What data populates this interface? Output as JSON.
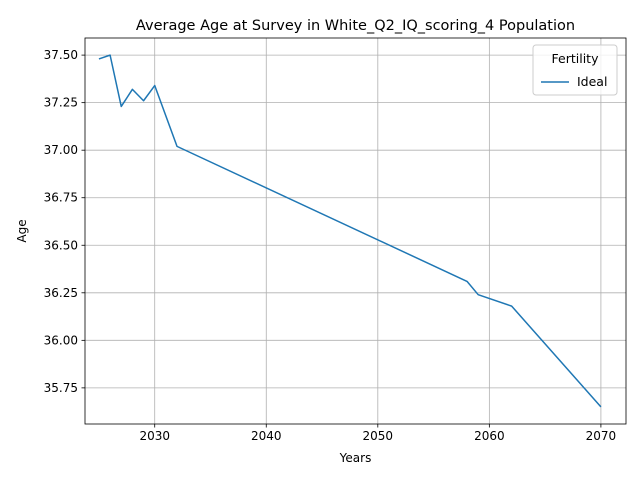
{
  "chart_data": {
    "type": "line",
    "title": "Average Age at Survey in White_Q2_IQ_scoring_4 Population",
    "xlabel": "Years",
    "ylabel": "Age",
    "xlim": [
      2023.75,
      2072.25
    ],
    "ylim": [
      35.56,
      37.59
    ],
    "x_ticks": [
      2030,
      2040,
      2050,
      2060,
      2070
    ],
    "y_ticks": [
      35.75,
      36.0,
      36.25,
      36.5,
      36.75,
      37.0,
      37.25,
      37.5
    ],
    "x_tick_labels": [
      "2030",
      "2040",
      "2050",
      "2060",
      "2070"
    ],
    "y_tick_labels": [
      "35.75",
      "36.00",
      "36.25",
      "36.50",
      "36.75",
      "37.00",
      "37.25",
      "37.50"
    ],
    "grid": true,
    "legend": {
      "title": "Fertility",
      "placement": "top-right"
    },
    "series": [
      {
        "name": "Ideal",
        "color": "#1f77b4",
        "x": [
          2025,
          2026,
          2027,
          2028,
          2029,
          2030,
          2032,
          2058,
          2059,
          2062,
          2070
        ],
        "y": [
          37.48,
          37.5,
          37.23,
          37.32,
          37.26,
          37.34,
          37.02,
          36.31,
          36.24,
          36.18,
          35.65
        ]
      }
    ]
  }
}
